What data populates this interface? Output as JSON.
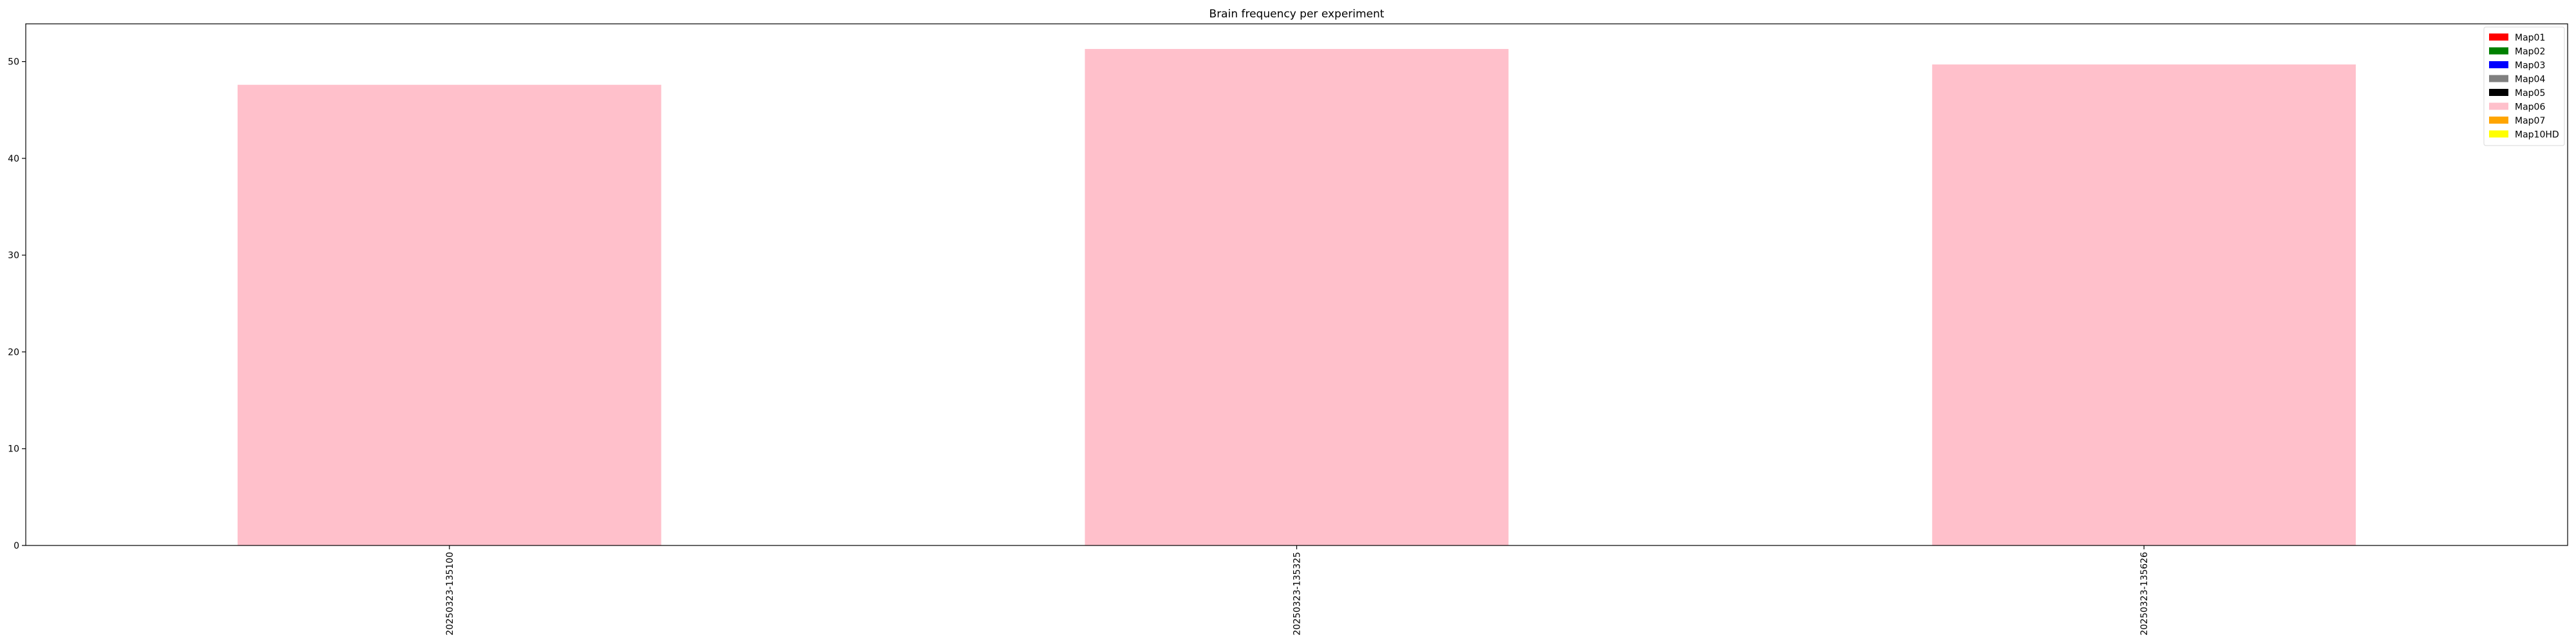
{
  "chart_data": {
    "type": "bar",
    "title": "Brain frequency per experiment",
    "xlabel": "",
    "ylabel": "",
    "categories": [
      "20250323-135100",
      "20250323-135325",
      "20250323-135626"
    ],
    "series": [
      {
        "name": "Map01",
        "color": "#ff0000",
        "values": [
          0,
          0,
          0
        ]
      },
      {
        "name": "Map02",
        "color": "#008000",
        "values": [
          0,
          0,
          0
        ]
      },
      {
        "name": "Map03",
        "color": "#0000ff",
        "values": [
          0,
          0,
          0
        ]
      },
      {
        "name": "Map04",
        "color": "#808080",
        "values": [
          0,
          0,
          0
        ]
      },
      {
        "name": "Map05",
        "color": "#000000",
        "values": [
          0,
          0,
          0
        ]
      },
      {
        "name": "Map06",
        "color": "#ffc0cb",
        "values": [
          47.6,
          51.3,
          49.7
        ]
      },
      {
        "name": "Map07",
        "color": "#ffa500",
        "values": [
          0,
          0,
          0
        ]
      },
      {
        "name": "Map10HD",
        "color": "#ffff00",
        "values": [
          0,
          0,
          0
        ]
      }
    ],
    "stacked": true,
    "ylim": [
      0,
      53.9
    ],
    "yticks": [
      0,
      10,
      20,
      30,
      40,
      50
    ],
    "grid": false,
    "legend_position": "top-right",
    "xtick_rotation": 90
  }
}
